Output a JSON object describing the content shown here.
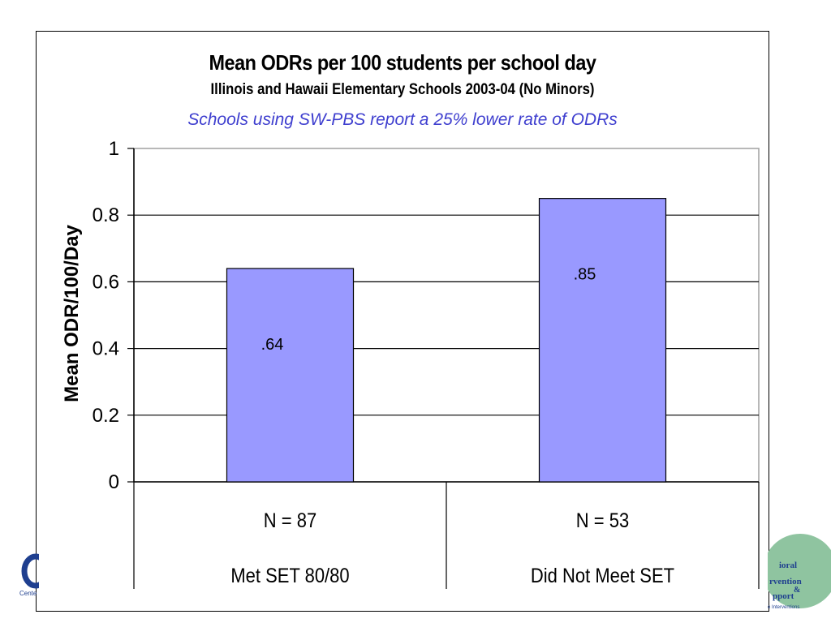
{
  "slide": {
    "title": "Mean ODRs per 100 students per school day",
    "subtitle": "Illinois and Hawaii Elementary Schools 2003-04 (No Minors)",
    "note": "Schools using SW-PBS report a 25% lower rate of ODRs"
  },
  "logos": {
    "left_text": "Cente",
    "right_lines": [
      "ioral",
      "rvention",
      "&",
      "pport",
      "e Interventions"
    ]
  },
  "colors": {
    "bar": "#9999ff",
    "note": "#3f3fcf",
    "axis": "#000000"
  },
  "chart_data": {
    "type": "bar",
    "categories": [
      "Met SET 80/80",
      "Did Not Meet SET"
    ],
    "category_counts": [
      "N = 87",
      "N = 53"
    ],
    "values": [
      0.64,
      0.85
    ],
    "data_labels": [
      ".64",
      ".85"
    ],
    "ylabel": "Mean ODR/100/Day",
    "xlabel": "",
    "ylim": [
      0,
      1
    ],
    "yticks": [
      0,
      0.2,
      0.4,
      0.6,
      0.8,
      1
    ],
    "ytick_labels": [
      "0",
      "0.2",
      "0.4",
      "0.6",
      "0.8",
      "1"
    ],
    "grid": true,
    "legend": "none"
  }
}
